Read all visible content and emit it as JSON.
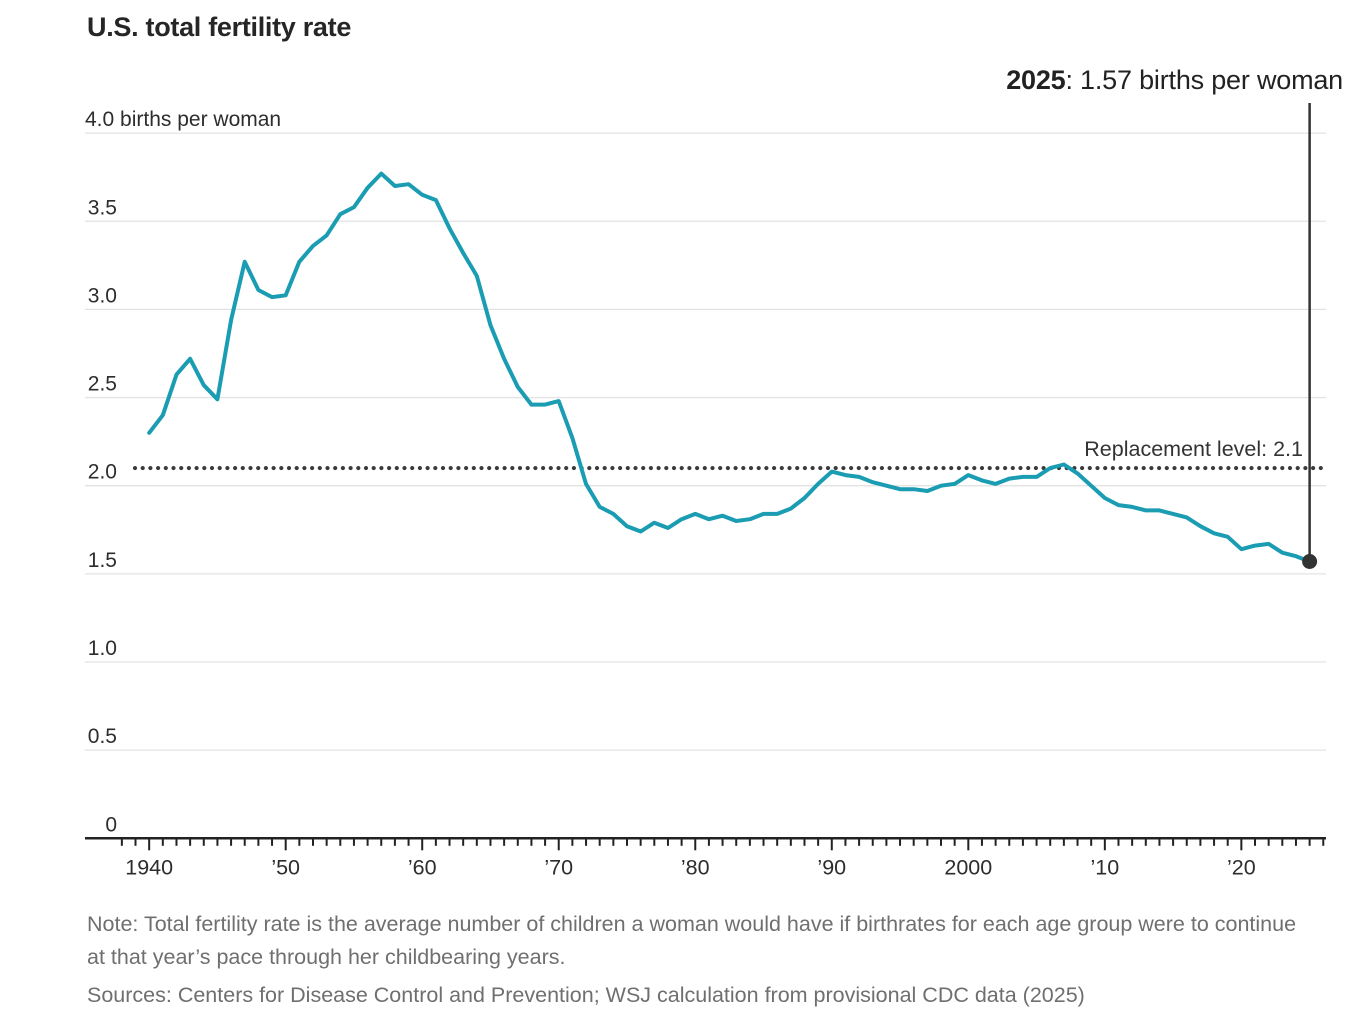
{
  "title": "U.S. total fertility rate",
  "annotation": {
    "year_label": "2025",
    "value_label": ": 1.57 births per woman"
  },
  "replacement_label": "Replacement level: 2.1",
  "note": "Note: Total fertility rate is the average number of children a woman would have if birthrates for each age group were to continue at that year’s pace through her childbearing years.",
  "sources": "Sources: Centers for Disease Control and Prevention; WSJ calculation from provisional CDC data (2025)",
  "chart_data": {
    "type": "line",
    "title": "U.S. total fertility rate",
    "series_name": "U.S. total fertility rate (births per woman)",
    "x": [
      1940,
      1941,
      1942,
      1943,
      1944,
      1945,
      1946,
      1947,
      1948,
      1949,
      1950,
      1951,
      1952,
      1953,
      1954,
      1955,
      1956,
      1957,
      1958,
      1959,
      1960,
      1961,
      1962,
      1963,
      1964,
      1965,
      1966,
      1967,
      1968,
      1969,
      1970,
      1971,
      1972,
      1973,
      1974,
      1975,
      1976,
      1977,
      1978,
      1979,
      1980,
      1981,
      1982,
      1983,
      1984,
      1985,
      1986,
      1987,
      1988,
      1989,
      1990,
      1991,
      1992,
      1993,
      1994,
      1995,
      1996,
      1997,
      1998,
      1999,
      2000,
      2001,
      2002,
      2003,
      2004,
      2005,
      2006,
      2007,
      2008,
      2009,
      2010,
      2011,
      2012,
      2013,
      2014,
      2015,
      2016,
      2017,
      2018,
      2019,
      2020,
      2021,
      2022,
      2023,
      2024,
      2025
    ],
    "values": [
      2.3,
      2.4,
      2.63,
      2.72,
      2.57,
      2.49,
      2.94,
      3.27,
      3.11,
      3.07,
      3.08,
      3.27,
      3.36,
      3.42,
      3.54,
      3.58,
      3.69,
      3.77,
      3.7,
      3.71,
      3.65,
      3.62,
      3.46,
      3.32,
      3.19,
      2.91,
      2.72,
      2.56,
      2.46,
      2.46,
      2.48,
      2.27,
      2.01,
      1.88,
      1.84,
      1.77,
      1.74,
      1.79,
      1.76,
      1.81,
      1.84,
      1.81,
      1.83,
      1.8,
      1.81,
      1.84,
      1.84,
      1.87,
      1.93,
      2.01,
      2.08,
      2.06,
      2.05,
      2.02,
      2.0,
      1.98,
      1.98,
      1.97,
      2.0,
      2.01,
      2.06,
      2.03,
      2.01,
      2.04,
      2.05,
      2.05,
      2.1,
      2.12,
      2.07,
      2.0,
      1.93,
      1.89,
      1.88,
      1.86,
      1.86,
      1.84,
      1.82,
      1.77,
      1.73,
      1.71,
      1.64,
      1.66,
      1.67,
      1.62,
      1.6,
      1.57
    ],
    "endpoint": {
      "year": 2025,
      "value": 1.57,
      "label": "2025: 1.57 births per woman"
    },
    "replacement_level": 2.1,
    "ylim": [
      0,
      4.0
    ],
    "xlim": [
      1935.3,
      2026.2
    ],
    "yticks": [
      0,
      0.5,
      1.0,
      1.5,
      2.0,
      2.5,
      3.0,
      3.5,
      4.0
    ],
    "ytick_labels": [
      "0",
      "0.5",
      "1.0",
      "1.5",
      "2.0",
      "2.5",
      "3.0",
      "3.5",
      "4.0"
    ],
    "ytick_top_label": "4.0 births per woman",
    "xticks_major": [
      1940,
      1950,
      1960,
      1970,
      1980,
      1990,
      2000,
      2010,
      2020
    ],
    "xtick_labels": [
      "1940",
      "’50",
      "’60",
      "’70",
      "’80",
      "’90",
      "2000",
      "’10",
      "’20"
    ],
    "minor_ticks": {
      "from": 1938,
      "to": 2026,
      "step": 1
    },
    "grid": true,
    "legend": "none",
    "colors": {
      "line": "#1a9cb3",
      "dotted": "#3b3b3b",
      "grid": "#e3e3e3",
      "axis": "#222222",
      "labels": "#2d2d2d",
      "marker": "#333333"
    }
  }
}
